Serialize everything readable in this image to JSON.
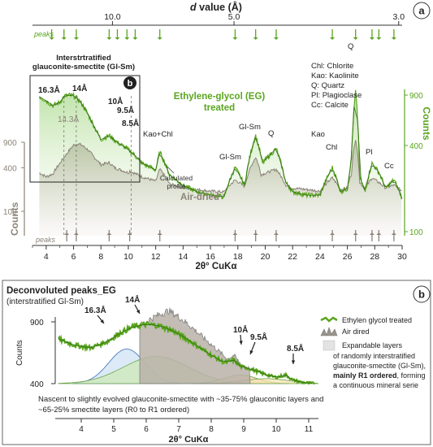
{
  "chart_data": [
    {
      "panel": "a",
      "type": "line",
      "xlabel": "2θ° CuKα",
      "xlim": [
        3,
        30
      ],
      "xticks": [
        4,
        6,
        8,
        10,
        12,
        14,
        16,
        18,
        20,
        22,
        24,
        26,
        28,
        30
      ],
      "top_axis": {
        "label": "d value (Å)",
        "ticks": [
          "10.0",
          "5.0",
          "3.0"
        ],
        "ticks_2theta": [
          8.84,
          17.72,
          29.75
        ]
      },
      "peaks_label": "peaks",
      "peak_positions_top": [
        4.4,
        5.3,
        6.2,
        8.6,
        9.2,
        9.9,
        10.5,
        12.3,
        17.8,
        19.3,
        20.8,
        24.9,
        26.6,
        27.8,
        28.3,
        29.4
      ],
      "peak_positions_bottom": [
        5.5,
        6.2,
        8.6,
        10.1,
        12.3,
        17.8,
        19.3,
        20.8,
        24.9,
        26.6,
        27.8,
        28.3,
        29.4
      ],
      "series": [
        {
          "name": "Ethylene-glycol (EG) treated",
          "color": "#5aa51e",
          "axis": "Counts (right)",
          "x": [
            3.5,
            4,
            4.5,
            5,
            5.3,
            5.6,
            6,
            6.4,
            6.8,
            7.2,
            7.6,
            8,
            8.6,
            9.2,
            9.9,
            10.5,
            11,
            12,
            12.3,
            13,
            14,
            15,
            16,
            17,
            17.8,
            18.5,
            19.3,
            19.8,
            20.8,
            21.5,
            22,
            23,
            24,
            24.9,
            25.5,
            26,
            26.3,
            26.6,
            26.9,
            27.3,
            27.8,
            28.3,
            28.8,
            29.4,
            30
          ],
          "y": [
            880,
            820,
            760,
            800,
            880,
            900,
            890,
            830,
            730,
            620,
            520,
            440,
            470,
            420,
            380,
            340,
            300,
            270,
            360,
            250,
            210,
            190,
            180,
            175,
            280,
            210,
            470,
            300,
            380,
            220,
            190,
            180,
            180,
            280,
            190,
            200,
            320,
            960,
            240,
            190,
            300,
            260,
            200,
            230,
            170
          ]
        },
        {
          "name": "Air-dried",
          "color": "#8b8378",
          "axis": "Counts (left)",
          "x": [
            3.5,
            4,
            4.5,
            5,
            5.5,
            6,
            6.3,
            6.6,
            7,
            7.5,
            8,
            8.6,
            9,
            10,
            10.1,
            11,
            12,
            12.3,
            13,
            14,
            15,
            16,
            17,
            17.8,
            18.5,
            19.3,
            19.7,
            20.8,
            21.5,
            22,
            23,
            24,
            24.9,
            25.5,
            26,
            26.3,
            26.6,
            26.9,
            27.3,
            27.8,
            28.3,
            28.8,
            29.4,
            30
          ],
          "y": [
            340,
            300,
            330,
            460,
            620,
            820,
            860,
            820,
            720,
            560,
            440,
            470,
            400,
            340,
            360,
            300,
            260,
            380,
            240,
            210,
            200,
            190,
            185,
            270,
            220,
            560,
            320,
            380,
            230,
            210,
            200,
            190,
            290,
            200,
            210,
            330,
            1010,
            250,
            200,
            290,
            250,
            210,
            230,
            190
          ]
        }
      ],
      "left_axis": {
        "label": "Counts",
        "ticks": [
          900,
          400,
          100
        ]
      },
      "right_axis": {
        "label": "Counts",
        "ticks": [
          900,
          400,
          100
        ]
      },
      "annotations": [
        "Q",
        "Gl-Sm",
        "Q",
        "Kao",
        "Chl",
        "Pl",
        "Cc",
        "Kao+Chl",
        "Gl-Sm",
        "16.3Å",
        "14Å",
        "14.3Å",
        "10Å",
        "9.5Å",
        "8.5Å",
        "Calculated profile"
      ]
    },
    {
      "panel": "b",
      "type": "line",
      "xlabel": "2θ° CuKα",
      "xlim": [
        3.2,
        11.3
      ],
      "xticks": [
        4,
        5,
        6,
        7,
        8,
        9,
        10,
        11
      ],
      "ylabel": "Counts",
      "yticks": [
        900,
        400
      ],
      "series": [
        {
          "name": "Ethylen glycol treated",
          "color": "#5aa51e",
          "x": [
            3.3,
            3.8,
            4.3,
            4.8,
            5.2,
            5.6,
            6,
            6.4,
            6.8,
            7.2,
            7.6,
            8,
            8.4,
            8.7,
            8.9,
            9.2,
            9.6,
            10,
            10.3,
            10.5,
            10.8,
            11.2
          ],
          "y": [
            760,
            710,
            690,
            740,
            810,
            860,
            880,
            870,
            830,
            770,
            700,
            630,
            570,
            590,
            540,
            520,
            480,
            450,
            470,
            430,
            410,
            400
          ]
        },
        {
          "name": "Air dired",
          "color": "#8b8378",
          "x": [
            5.8,
            6.1,
            6.4,
            6.7,
            7,
            7.3,
            7.6,
            7.9,
            8.2,
            8.5,
            8.7,
            8.9,
            9.2
          ],
          "y": [
            870,
            920,
            960,
            990,
            940,
            880,
            810,
            740,
            670,
            600,
            630,
            560,
            520
          ]
        }
      ],
      "components": [
        {
          "center": 5.4,
          "height": 680,
          "width": 0.55,
          "fill": "#cfe3f3"
        },
        {
          "center": 6.3,
          "height": 620,
          "width": 1.0,
          "fill": "#cfe8b8"
        },
        {
          "center": 8.9,
          "height": 470,
          "width": 0.5,
          "fill": "#f3d4a8"
        },
        {
          "center": 9.7,
          "height": 440,
          "width": 0.7,
          "fill": "#f5e1b2"
        }
      ],
      "annotations": [
        "16.3Å",
        "14Å",
        "10Å",
        "9.5Å",
        "8.5Å"
      ]
    }
  ],
  "panel_a": {
    "letter": "a",
    "top_axis_label_d": "d",
    "top_axis_label_rest": " value (Å)",
    "peaks_top": "peaks",
    "peaks_bottom": "peaks",
    "interstratified_title_1": "Interstrtratified",
    "interstratified_title_2": "glauconite-smectite (Gl-Sm)",
    "inset_letter": "b",
    "eg_label_1": "Ethylene-glycol (EG)",
    "eg_label_2": "treated",
    "air_label": "Air-dried",
    "calc_label_1": "Calculated",
    "calc_label_2": "profile",
    "legend": [
      "Chl: Chlorite",
      "Kao: Kaolinite",
      "Q: Quartz",
      "Pl: Plagioclase",
      "Cc: Calcite"
    ],
    "left_counts": "Counts",
    "right_counts": "Counts",
    "xlabel": "2θ° CuKα",
    "labels": {
      "q_top": "Q",
      "glsm_mid": "Gl-Sm",
      "q_mid": "Q",
      "kao": "Kao",
      "chl": "Chl",
      "pl": "Pl",
      "cc": "Cc",
      "kaochl": "Kao+Chl",
      "glsm_low": "Gl-Sm",
      "p163": "16.3Å",
      "p14": "14Å",
      "p143": "14.3Å",
      "p10": "10Å",
      "p95": "9.5Å",
      "p85": "8.5Å"
    }
  },
  "panel_b": {
    "letter": "b",
    "title": "Deconvoluted peaks_EG",
    "subtitle": "(interstratified Gl-Sm)",
    "ylabel": "Counts",
    "xlabel": "2θ° CuKα",
    "legend_eg": "Ethylen glycol treated",
    "legend_air": "Air dired",
    "legend_exp_1": "Expandable layers",
    "legend_exp_2": "of randomly interstratified",
    "legend_exp_3": "glauconite-smectite (Gl-Sm),",
    "legend_exp_4_bold": "mainly R1 ordered",
    "legend_exp_4_rest": ", forming",
    "legend_exp_5": "a continuous mineral serie",
    "note_1": "Nascent to slightly evolved glauconite-smectite with ~35-75% glauconitic layers and",
    "note_2": "~65-25% smectite layers (R0 to R1 ordered)",
    "labels": {
      "p163": "16.3Å",
      "p14": "14Å",
      "p10": "10Å",
      "p95": "9.5Å",
      "p85": "8.5Å"
    }
  }
}
